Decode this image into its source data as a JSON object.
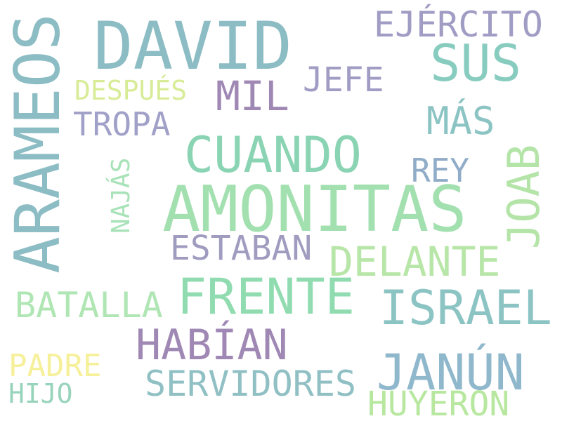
{
  "words": [
    {
      "text": "AMONITAS",
      "color": "#a3e0b0"
    },
    {
      "text": "DAVID",
      "color": "#8cbcc4"
    },
    {
      "text": "ARAMEOS",
      "color": "#8cbcc4"
    },
    {
      "text": "CUANDO",
      "color": "#8ad4b4"
    },
    {
      "text": "FRENTE",
      "color": "#90dcb0"
    },
    {
      "text": "SUS",
      "color": "#88ccc0"
    },
    {
      "text": "ISRAEL",
      "color": "#8cc4c4"
    },
    {
      "text": "JANÚN",
      "color": "#90b8cc"
    },
    {
      "text": "HABÍAN",
      "color": "#a088b4"
    },
    {
      "text": "JOAB",
      "color": "#b4e4a8"
    },
    {
      "text": "DELANTE",
      "color": "#b8e6a8"
    },
    {
      "text": "EJÉRCITO",
      "color": "#a09cc4"
    },
    {
      "text": "MIL",
      "color": "#a088b4"
    },
    {
      "text": "ESTABAN",
      "color": "#a09cc0"
    },
    {
      "text": "SERVIDORES",
      "color": "#90c0c4"
    },
    {
      "text": "BATALLA",
      "color": "#b0e6b4"
    },
    {
      "text": "HUYERON",
      "color": "#b8e8a0"
    },
    {
      "text": "TROPA",
      "color": "#a0a0c8"
    },
    {
      "text": "MÁS",
      "color": "#8cc4c4"
    },
    {
      "text": "JEFE",
      "color": "#a09cc4"
    },
    {
      "text": "REY",
      "color": "#90acc8"
    },
    {
      "text": "PADRE",
      "color": "#f6f09a"
    },
    {
      "text": "DESPUÉS",
      "color": "#d8ec98"
    },
    {
      "text": "NAJÁS",
      "color": "#a8e2b8"
    },
    {
      "text": "HIJO",
      "color": "#98d4bc"
    }
  ]
}
